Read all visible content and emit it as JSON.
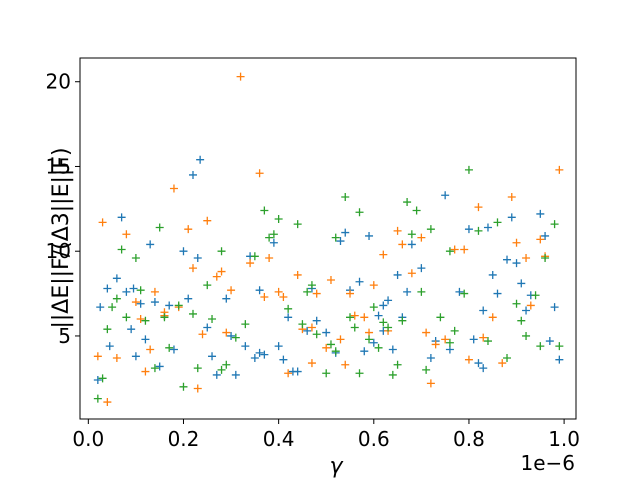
{
  "chart_data": {
    "type": "scatter",
    "marker": "+",
    "xlabel": "γ",
    "ylabel": "||ΔE||F/(Δ3||E||F)",
    "x_offset_label": "1e−6",
    "x_scale": 1e-06,
    "xlim": [
      -1.75e-08,
      1.025e-06
    ],
    "ylim": [
      0.1,
      21.4
    ],
    "x_ticks": [
      0,
      2e-07,
      4e-07,
      6e-07,
      8e-07,
      1e-06
    ],
    "x_tick_labels": [
      "0.0",
      "0.2",
      "0.4",
      "0.6",
      "0.8",
      "1.0"
    ],
    "y_ticks": [
      5,
      10,
      15,
      20
    ],
    "y_tick_labels": [
      "5",
      "10",
      "15",
      "20"
    ],
    "grid": false,
    "series": [
      {
        "color": "#1f77b4",
        "points": [
          [
            2e-08,
            2.4
          ],
          [
            2.5e-08,
            6.7
          ],
          [
            4e-08,
            7.8
          ],
          [
            4.5e-08,
            4.4
          ],
          [
            6e-08,
            8.4
          ],
          [
            7e-08,
            12.0
          ],
          [
            8e-08,
            7.6
          ],
          [
            9e-08,
            5.4
          ],
          [
            9.5e-08,
            7.8
          ],
          [
            1e-07,
            3.8
          ],
          [
            1.1e-07,
            6.9
          ],
          [
            1.2e-07,
            4.8
          ],
          [
            1.3e-07,
            10.4
          ],
          [
            1.4e-07,
            7.0
          ],
          [
            1.5e-07,
            3.2
          ],
          [
            1.6e-07,
            6.2
          ],
          [
            1.7e-07,
            6.8
          ],
          [
            1.8e-07,
            4.2
          ],
          [
            2e-07,
            10.0
          ],
          [
            2.1e-07,
            7.2
          ],
          [
            2.2e-07,
            14.5
          ],
          [
            2.3e-07,
            9.6
          ],
          [
            2.35e-07,
            15.4
          ],
          [
            2.5e-07,
            5.5
          ],
          [
            2.6e-07,
            3.8
          ],
          [
            2.7e-07,
            2.7
          ],
          [
            2.9e-07,
            7.2
          ],
          [
            3e-07,
            5.0
          ],
          [
            3.1e-07,
            2.7
          ],
          [
            3.3e-07,
            4.4
          ],
          [
            3.4e-07,
            9.7
          ],
          [
            3.5e-07,
            3.7
          ],
          [
            3.6e-07,
            7.7
          ],
          [
            3.7e-07,
            3.9
          ],
          [
            3.9e-07,
            10.5
          ],
          [
            4e-07,
            4.4
          ],
          [
            4.1e-07,
            3.6
          ],
          [
            4.2e-07,
            6.1
          ],
          [
            4.3e-07,
            2.9
          ],
          [
            4.4e-07,
            2.9
          ],
          [
            4.6e-07,
            5.3
          ],
          [
            4.7e-07,
            7.8
          ],
          [
            4.8e-07,
            5.9
          ],
          [
            5e-07,
            5.2
          ],
          [
            5.2e-07,
            4.0
          ],
          [
            5.3e-07,
            10.6
          ],
          [
            5.4e-07,
            11.1
          ],
          [
            5.5e-07,
            7.7
          ],
          [
            5.7e-07,
            8.2
          ],
          [
            5.8e-07,
            4.1
          ],
          [
            5.9e-07,
            10.9
          ],
          [
            6e-07,
            4.6
          ],
          [
            6.1e-07,
            6.2
          ],
          [
            6.2e-07,
            5.3
          ],
          [
            6.3e-07,
            7.1
          ],
          [
            6.4e-07,
            4.2
          ],
          [
            6.5e-07,
            8.6
          ],
          [
            6.6e-07,
            6.1
          ],
          [
            6.7e-07,
            7.6
          ],
          [
            6.8e-07,
            10.4
          ],
          [
            7e-07,
            9.0
          ],
          [
            7.2e-07,
            3.7
          ],
          [
            7.3e-07,
            4.7
          ],
          [
            7.5e-07,
            13.3
          ],
          [
            7.6e-07,
            4.2
          ],
          [
            7.8e-07,
            7.6
          ],
          [
            8e-07,
            11.3
          ],
          [
            8.1e-07,
            4.8
          ],
          [
            8.2e-07,
            3.4
          ],
          [
            8.3e-07,
            3.1
          ],
          [
            8.4e-07,
            11.4
          ],
          [
            8.5e-07,
            8.6
          ],
          [
            8.6e-07,
            7.5
          ],
          [
            8.8e-07,
            9.5
          ],
          [
            8.9e-07,
            12.0
          ],
          [
            9e-07,
            9.3
          ],
          [
            9.1e-07,
            8.1
          ],
          [
            9.2e-07,
            6.5
          ],
          [
            9.3e-07,
            7.4
          ],
          [
            9.5e-07,
            12.2
          ],
          [
            9.6e-07,
            10.9
          ],
          [
            9.7e-07,
            4.7
          ],
          [
            9.8e-07,
            6.7
          ],
          [
            9.9e-07,
            3.6
          ],
          [
            8.3e-07,
            6.5
          ],
          [
            3.6e-07,
            4.0
          ],
          [
            6.2e-07,
            6.8
          ]
        ]
      },
      {
        "color": "#ff7f0e",
        "points": [
          [
            2e-08,
            3.8
          ],
          [
            3e-08,
            11.7
          ],
          [
            4e-08,
            1.1
          ],
          [
            6e-08,
            3.7
          ],
          [
            8e-08,
            11.0
          ],
          [
            1e-07,
            7.0
          ],
          [
            1.1e-07,
            6.0
          ],
          [
            1.2e-07,
            2.9
          ],
          [
            1.3e-07,
            4.2
          ],
          [
            1.4e-07,
            7.6
          ],
          [
            1.6e-07,
            6.4
          ],
          [
            1.8e-07,
            13.7
          ],
          [
            1.9e-07,
            6.7
          ],
          [
            2.1e-07,
            11.3
          ],
          [
            2.2e-07,
            9.0
          ],
          [
            2.3e-07,
            1.9
          ],
          [
            2.4e-07,
            5.1
          ],
          [
            2.5e-07,
            11.8
          ],
          [
            2.7e-07,
            8.5
          ],
          [
            2.8e-07,
            8.8
          ],
          [
            2.9e-07,
            5.2
          ],
          [
            3e-07,
            7.7
          ],
          [
            3.2e-07,
            20.3
          ],
          [
            3.4e-07,
            9.3
          ],
          [
            3.6e-07,
            14.6
          ],
          [
            3.7e-07,
            7.3
          ],
          [
            3.8e-07,
            9.6
          ],
          [
            4e-07,
            7.6
          ],
          [
            4.1e-07,
            7.3
          ],
          [
            4.2e-07,
            2.8
          ],
          [
            4.4e-07,
            8.6
          ],
          [
            4.5e-07,
            5.4
          ],
          [
            4.7e-07,
            5.5
          ],
          [
            4.8e-07,
            7.5
          ],
          [
            5e-07,
            4.3
          ],
          [
            5.1e-07,
            8.3
          ],
          [
            5.3e-07,
            4.8
          ],
          [
            5.4e-07,
            3.3
          ],
          [
            5.5e-07,
            7.5
          ],
          [
            5.6e-07,
            6.2
          ],
          [
            5.8e-07,
            6.1
          ],
          [
            5.9e-07,
            5.2
          ],
          [
            6e-07,
            8.0
          ],
          [
            6.2e-07,
            9.8
          ],
          [
            6.3e-07,
            5.3
          ],
          [
            6.5e-07,
            11.2
          ],
          [
            6.6e-07,
            10.4
          ],
          [
            6.8e-07,
            8.7
          ],
          [
            7e-07,
            10.8
          ],
          [
            7.1e-07,
            5.2
          ],
          [
            7.2e-07,
            2.2
          ],
          [
            7.3e-07,
            4.5
          ],
          [
            7.5e-07,
            4.8
          ],
          [
            7.7e-07,
            10.1
          ],
          [
            7.9e-07,
            10.1
          ],
          [
            8e-07,
            3.6
          ],
          [
            8.2e-07,
            12.6
          ],
          [
            8.3e-07,
            4.9
          ],
          [
            8.5e-07,
            6.1
          ],
          [
            8.7e-07,
            3.4
          ],
          [
            8.9e-07,
            13.2
          ],
          [
            9e-07,
            10.5
          ],
          [
            9.2e-07,
            9.6
          ],
          [
            9.3e-07,
            6.8
          ],
          [
            9.5e-07,
            10.7
          ],
          [
            9.6e-07,
            9.7
          ],
          [
            9.9e-07,
            14.8
          ],
          [
            1.6e-07,
            6.2
          ],
          [
            4.7e-07,
            3.4
          ]
        ]
      },
      {
        "color": "#2ca02c",
        "points": [
          [
            2e-08,
            1.3
          ],
          [
            3e-08,
            2.5
          ],
          [
            4e-08,
            5.4
          ],
          [
            5e-08,
            6.7
          ],
          [
            6e-08,
            7.2
          ],
          [
            7e-08,
            10.1
          ],
          [
            8e-08,
            6.1
          ],
          [
            1e-07,
            9.6
          ],
          [
            1.1e-07,
            7.7
          ],
          [
            1.2e-07,
            5.9
          ],
          [
            1.4e-07,
            3.1
          ],
          [
            1.5e-07,
            11.4
          ],
          [
            1.6e-07,
            6.1
          ],
          [
            1.7e-07,
            4.3
          ],
          [
            1.9e-07,
            6.8
          ],
          [
            2e-07,
            2.0
          ],
          [
            2.2e-07,
            6.3
          ],
          [
            2.3e-07,
            3.1
          ],
          [
            2.5e-07,
            8.0
          ],
          [
            2.6e-07,
            6.0
          ],
          [
            2.8e-07,
            10.0
          ],
          [
            2.9e-07,
            3.3
          ],
          [
            3.1e-07,
            4.9
          ],
          [
            3.3e-07,
            5.7
          ],
          [
            3.5e-07,
            9.7
          ],
          [
            3.7e-07,
            12.4
          ],
          [
            3.8e-07,
            10.8
          ],
          [
            3.9e-07,
            11.0
          ],
          [
            4e-07,
            11.9
          ],
          [
            4.2e-07,
            6.6
          ],
          [
            4.4e-07,
            11.6
          ],
          [
            4.5e-07,
            5.7
          ],
          [
            4.6e-07,
            7.6
          ],
          [
            4.7e-07,
            8.0
          ],
          [
            4.8e-07,
            5.1
          ],
          [
            5e-07,
            2.8
          ],
          [
            5.1e-07,
            4.5
          ],
          [
            5.2e-07,
            10.8
          ],
          [
            5.4e-07,
            13.2
          ],
          [
            5.5e-07,
            6.1
          ],
          [
            5.6e-07,
            5.5
          ],
          [
            5.7e-07,
            12.3
          ],
          [
            5.9e-07,
            4.8
          ],
          [
            6e-07,
            6.7
          ],
          [
            6.1e-07,
            4.3
          ],
          [
            6.2e-07,
            5.8
          ],
          [
            6.3e-07,
            5.5
          ],
          [
            6.4e-07,
            2.7
          ],
          [
            6.6e-07,
            5.9
          ],
          [
            6.7e-07,
            12.9
          ],
          [
            6.8e-07,
            11.0
          ],
          [
            6.9e-07,
            12.4
          ],
          [
            7e-07,
            7.6
          ],
          [
            7.1e-07,
            3.0
          ],
          [
            7.2e-07,
            11.3
          ],
          [
            7.4e-07,
            6.1
          ],
          [
            7.6e-07,
            10.0
          ],
          [
            7.7e-07,
            5.3
          ],
          [
            7.9e-07,
            7.5
          ],
          [
            8e-07,
            14.8
          ],
          [
            8.2e-07,
            11.2
          ],
          [
            8.4e-07,
            4.7
          ],
          [
            8.6e-07,
            11.7
          ],
          [
            8.8e-07,
            3.7
          ],
          [
            9e-07,
            6.9
          ],
          [
            9.1e-07,
            5.9
          ],
          [
            9.2e-07,
            5.0
          ],
          [
            9.4e-07,
            7.4
          ],
          [
            9.5e-07,
            4.4
          ],
          [
            9.6e-07,
            9.6
          ],
          [
            9.8e-07,
            11.6
          ],
          [
            9.9e-07,
            4.4
          ],
          [
            7.6e-07,
            4.6
          ],
          [
            5.2e-07,
            4.1
          ],
          [
            2.8e-07,
            3.0
          ],
          [
            5.7e-07,
            2.8
          ],
          [
            6.5e-07,
            3.3
          ]
        ]
      }
    ]
  }
}
